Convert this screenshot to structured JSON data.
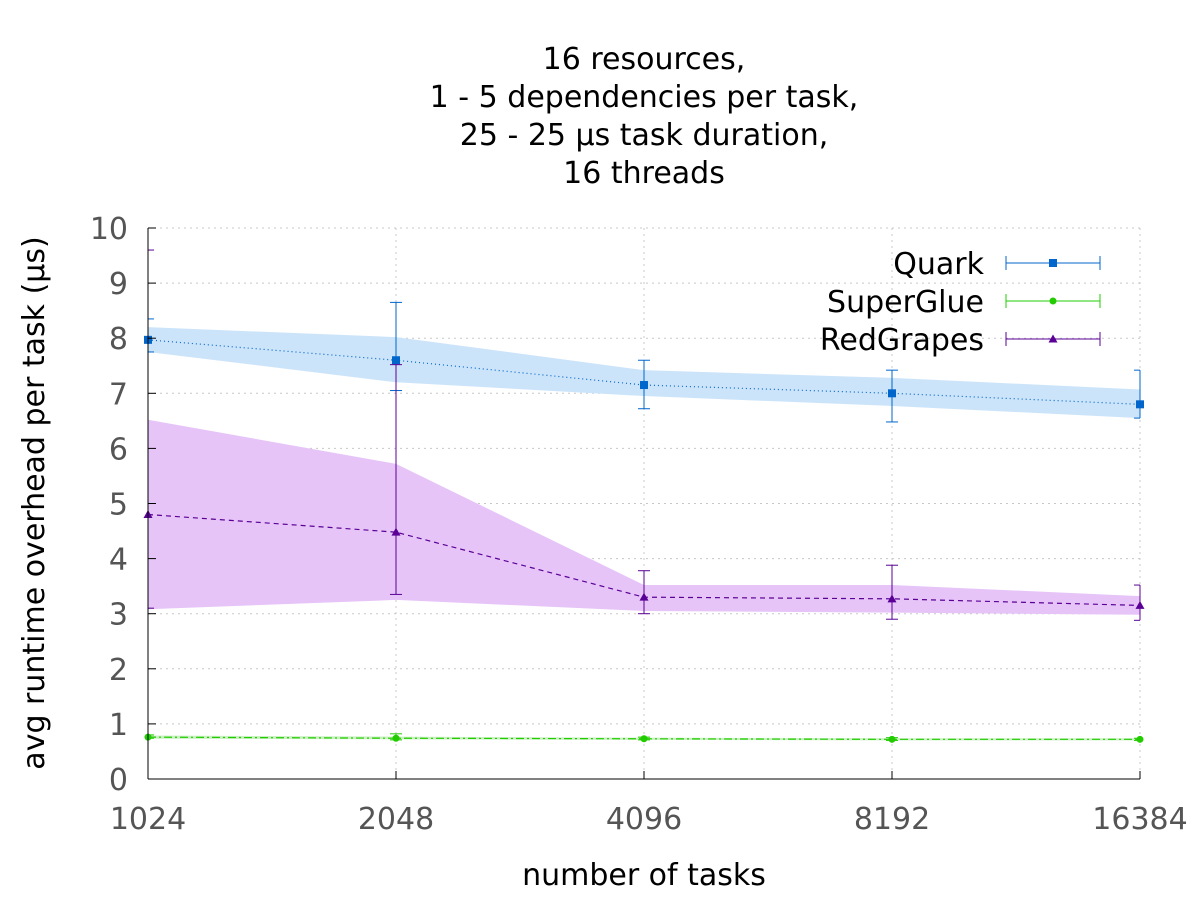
{
  "chart_data": {
    "type": "line",
    "title_lines": [
      "16 resources,",
      "1 - 5 dependencies per task,",
      "25 - 25 µs task duration,",
      "16 threads"
    ],
    "xlabel": "number of tasks",
    "ylabel": "avg runtime overhead per task (µs)",
    "x": [
      1024,
      2048,
      4096,
      8192,
      16384
    ],
    "x_tick_labels": [
      "1024",
      "2048",
      "4096",
      "8192",
      "16384"
    ],
    "x_scale": "log2",
    "ylim": [
      0,
      10
    ],
    "y_ticks": [
      0,
      1,
      2,
      3,
      4,
      5,
      6,
      7,
      8,
      9,
      10
    ],
    "grid": true,
    "legend_position": "top-right",
    "series": [
      {
        "name": "Quark",
        "color": "#0066cc",
        "band_color": "#cce4fa",
        "marker": "square",
        "line_style": "dotted",
        "values": [
          7.97,
          7.6,
          7.15,
          7.0,
          6.8
        ],
        "err_low": [
          7.75,
          7.05,
          6.72,
          6.48,
          6.55
        ],
        "err_high": [
          8.35,
          8.65,
          7.6,
          7.42,
          7.42
        ],
        "band_low": [
          7.75,
          7.2,
          6.95,
          6.77,
          6.55
        ],
        "band_high": [
          8.2,
          8.02,
          7.42,
          7.28,
          7.07
        ]
      },
      {
        "name": "SuperGlue",
        "color": "#22cc00",
        "band_color": "#c8f0c0",
        "marker": "circle",
        "line_style": "dash-dot",
        "values": [
          0.76,
          0.74,
          0.73,
          0.72,
          0.72
        ],
        "err_low": [
          0.74,
          0.71,
          0.71,
          0.7,
          0.7
        ],
        "err_high": [
          0.8,
          0.82,
          0.76,
          0.75,
          0.74
        ],
        "band_low": [
          0.73,
          0.72,
          0.71,
          0.7,
          0.7
        ],
        "band_high": [
          0.79,
          0.77,
          0.75,
          0.74,
          0.74
        ]
      },
      {
        "name": "RedGrapes",
        "color": "#5a0096",
        "band_color": "#e6c4f8",
        "marker": "triangle",
        "line_style": "dashed",
        "values": [
          4.8,
          4.48,
          3.3,
          3.27,
          3.15
        ],
        "err_low": [
          3.1,
          3.35,
          3.0,
          2.9,
          2.88
        ],
        "err_high": [
          9.6,
          7.52,
          3.78,
          3.88,
          3.52
        ],
        "band_low": [
          3.08,
          3.25,
          3.05,
          3.02,
          2.98
        ],
        "band_high": [
          6.52,
          5.72,
          3.52,
          3.52,
          3.32
        ]
      }
    ]
  }
}
